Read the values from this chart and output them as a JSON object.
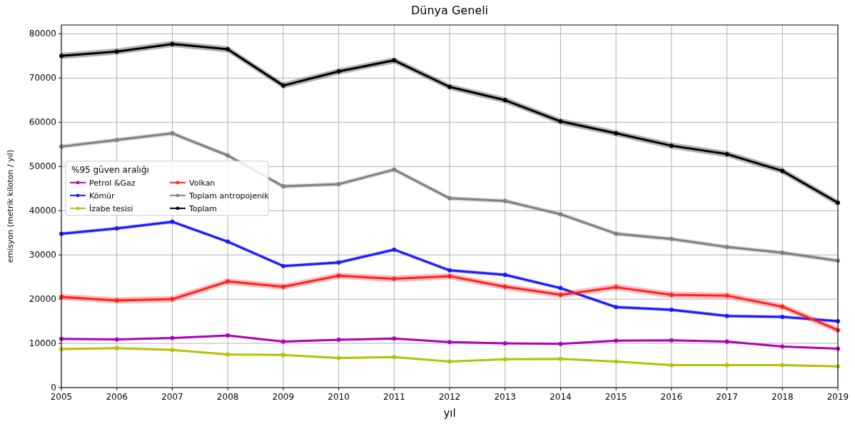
{
  "chart_data": {
    "type": "line",
    "title": "Dünya Geneli",
    "xlabel": "yıl",
    "ylabel": "emisyon (metrik kiloton / yıl)",
    "legend_title": "%95 güven aralığı",
    "legend": "left",
    "grid": true,
    "marker": "circle",
    "line_style": "solid",
    "x": [
      2005,
      2006,
      2007,
      2008,
      2009,
      2010,
      2011,
      2012,
      2013,
      2014,
      2015,
      2016,
      2017,
      2018,
      2019
    ],
    "xlim": [
      2005,
      2019
    ],
    "xticks": [
      2005,
      2006,
      2007,
      2008,
      2009,
      2010,
      2011,
      2012,
      2013,
      2014,
      2015,
      2016,
      2017,
      2018,
      2019
    ],
    "ylim": [
      0,
      82000
    ],
    "yticks": [
      0,
      10000,
      20000,
      30000,
      40000,
      50000,
      60000,
      70000,
      80000
    ],
    "series": [
      {
        "name": "Petrol &Gaz",
        "color": "#b000b8",
        "values": [
          11000,
          10900,
          11200,
          11800,
          10400,
          10800,
          11100,
          10300,
          10000,
          9900,
          10600,
          10700,
          10400,
          9300,
          8800
        ],
        "lower": [
          10800,
          10700,
          11000,
          11600,
          10200,
          10600,
          10900,
          10100,
          9800,
          9700,
          10400,
          10500,
          10200,
          9100,
          8600
        ],
        "upper": [
          11200,
          11100,
          11400,
          12000,
          10600,
          11000,
          11300,
          10500,
          10200,
          10100,
          10800,
          10900,
          10600,
          9500,
          9000
        ]
      },
      {
        "name": "Kömür",
        "color": "#1a1aff",
        "values": [
          34800,
          36000,
          37500,
          33000,
          27500,
          28300,
          31200,
          26500,
          25500,
          22500,
          18200,
          17600,
          16200,
          16000,
          15000
        ],
        "lower": [
          34400,
          35600,
          37100,
          32600,
          27100,
          27900,
          30800,
          26100,
          25100,
          22100,
          17800,
          17200,
          15800,
          15600,
          14600
        ],
        "upper": [
          35200,
          36400,
          37900,
          33400,
          27900,
          28700,
          31600,
          26900,
          25900,
          22900,
          18600,
          18000,
          16600,
          16400,
          15400
        ]
      },
      {
        "name": "İzabe tesisi",
        "color": "#b5c200",
        "values": [
          8700,
          8900,
          8500,
          7500,
          7400,
          6700,
          6900,
          5900,
          6400,
          6500,
          5900,
          5100,
          5100,
          5100,
          4800
        ],
        "lower": [
          8500,
          8700,
          8300,
          7300,
          7200,
          6500,
          6700,
          5700,
          6200,
          6300,
          5700,
          4900,
          4900,
          4900,
          4600
        ],
        "upper": [
          8900,
          9100,
          8700,
          7700,
          7600,
          6900,
          7100,
          6100,
          6600,
          6700,
          6100,
          5300,
          5300,
          5300,
          5000
        ]
      },
      {
        "name": "Volkan",
        "color": "#ff2020",
        "values": [
          20500,
          19700,
          20000,
          24000,
          22800,
          25300,
          24600,
          25200,
          22800,
          21000,
          22700,
          21000,
          20800,
          18300,
          13000
        ],
        "lower": [
          19800,
          19000,
          19300,
          23300,
          22100,
          24600,
          23900,
          24500,
          22100,
          20300,
          22000,
          20300,
          20100,
          17600,
          12300
        ],
        "upper": [
          21200,
          20400,
          20700,
          24700,
          23500,
          26000,
          25300,
          25900,
          23500,
          21700,
          23400,
          21700,
          21500,
          19000,
          13700
        ]
      },
      {
        "name": "Toplam antropojenik",
        "color": "#808080",
        "values": [
          54500,
          56000,
          57500,
          52500,
          45500,
          46000,
          49300,
          42800,
          42200,
          39200,
          34800,
          33600,
          31800,
          30500,
          28700
        ],
        "lower": [
          54000,
          55500,
          57000,
          52000,
          45000,
          45500,
          48800,
          42300,
          41700,
          38700,
          34300,
          33100,
          31300,
          30000,
          28200
        ],
        "upper": [
          55000,
          56500,
          58000,
          53000,
          46000,
          46500,
          49800,
          43300,
          42700,
          39700,
          35300,
          34100,
          32300,
          31000,
          29200
        ]
      },
      {
        "name": "Toplam",
        "color": "#000000",
        "values": [
          75000,
          76000,
          77700,
          76500,
          68300,
          71500,
          74000,
          68000,
          65000,
          60200,
          57500,
          54700,
          52800,
          49000,
          41800
        ],
        "lower": [
          74300,
          75300,
          77000,
          75800,
          67600,
          70800,
          73300,
          67300,
          64300,
          59500,
          56800,
          54000,
          52100,
          48300,
          41100
        ],
        "upper": [
          75700,
          76700,
          78400,
          77200,
          69000,
          72200,
          74700,
          68700,
          65700,
          60900,
          58200,
          55400,
          53500,
          49700,
          42500
        ]
      }
    ]
  }
}
